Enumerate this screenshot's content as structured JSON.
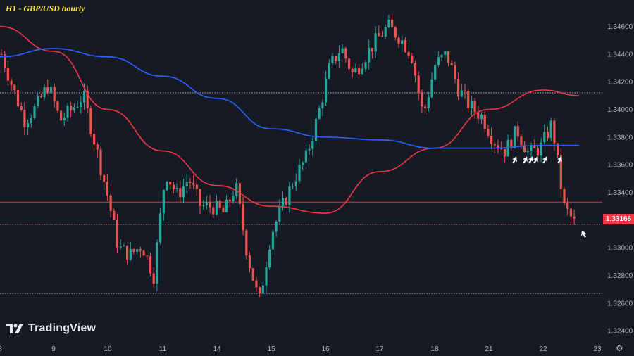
{
  "title": "H1 - GBP/USD hourly",
  "brand": "TradingView",
  "current_price_label": "1.33166",
  "settings_icon": "gear-icon",
  "colors": {
    "background": "#161a25",
    "up": "#26a69a",
    "down": "#ef5350",
    "ma_fast": "#f23645",
    "ma_slow": "#2962ff",
    "grid_line": "#d1d4dc",
    "axis_text": "#b2b5be",
    "price_tag": "#f23645",
    "title": "#ffeb3b"
  },
  "chart_data": {
    "type": "candlestick",
    "title": "H1 - GBP/USD hourly",
    "x_tick_labels": [
      "8",
      "9",
      "10",
      "11",
      "14",
      "15",
      "16",
      "17",
      "18",
      "21",
      "22",
      "23"
    ],
    "y_tick_labels": [
      "1.34600",
      "1.34400",
      "1.34200",
      "1.34000",
      "1.33800",
      "1.33600",
      "1.33400",
      "1.33200",
      "1.33000",
      "1.32800",
      "1.32600",
      "1.32400"
    ],
    "y_range": [
      1.3234,
      1.3474
    ],
    "horizontal_levels": [
      {
        "value": 1.3412,
        "style": "dotted",
        "color": "#d1d4dc"
      },
      {
        "value": 1.3333,
        "style": "solid",
        "color": "#f23645"
      },
      {
        "value": 1.33166,
        "style": "dotted",
        "color": "#f23645"
      },
      {
        "value": 1.3267,
        "style": "dotted",
        "color": "#d1d4dc"
      }
    ],
    "candles_close_path": [
      [
        "8",
        1.344
      ],
      [
        "8",
        1.3415
      ],
      [
        "8",
        1.3392
      ],
      [
        "8",
        1.3402
      ],
      [
        "9",
        1.3418
      ],
      [
        "9",
        1.3392
      ],
      [
        "9",
        1.34
      ],
      [
        "9",
        1.341
      ],
      [
        "10",
        1.3375
      ],
      [
        "10",
        1.334
      ],
      [
        "10",
        1.33
      ],
      [
        "10",
        1.3295
      ],
      [
        "10",
        1.3302
      ],
      [
        "10",
        1.328
      ],
      [
        "11",
        1.3355
      ],
      [
        "11",
        1.3338
      ],
      [
        "11",
        1.335
      ],
      [
        "11",
        1.333
      ],
      [
        "14",
        1.333
      ],
      [
        "14",
        1.3325
      ],
      [
        "14",
        1.3345
      ],
      [
        "14",
        1.3295
      ],
      [
        "15",
        1.326
      ],
      [
        "15",
        1.331
      ],
      [
        "15",
        1.333
      ],
      [
        "15",
        1.335
      ],
      [
        "15",
        1.3365
      ],
      [
        "16",
        1.3395
      ],
      [
        "16",
        1.343
      ],
      [
        "16",
        1.3445
      ],
      [
        "16",
        1.3425
      ],
      [
        "17",
        1.3438
      ],
      [
        "17",
        1.345
      ],
      [
        "17",
        1.346
      ],
      [
        "17",
        1.3452
      ],
      [
        "18",
        1.344
      ],
      [
        "18",
        1.3395
      ],
      [
        "18",
        1.3432
      ],
      [
        "18",
        1.344
      ],
      [
        "18",
        1.3415
      ],
      [
        "21",
        1.3402
      ],
      [
        "21",
        1.3395
      ],
      [
        "21",
        1.3378
      ],
      [
        "21",
        1.337
      ],
      [
        "22",
        1.3385
      ],
      [
        "22",
        1.3368
      ],
      [
        "22",
        1.3372
      ],
      [
        "22",
        1.339
      ],
      [
        "22",
        1.333
      ],
      [
        "22",
        1.33166
      ]
    ],
    "series": [
      {
        "name": "",
        "type": "line",
        "color": "#f23645",
        "points": [
          [
            "8",
            1.346
          ],
          [
            "9",
            1.3442
          ],
          [
            "10",
            1.34
          ],
          [
            "11",
            1.337
          ],
          [
            "14",
            1.3345
          ],
          [
            "15",
            1.333
          ],
          [
            "16",
            1.3325
          ],
          [
            "17",
            1.3355
          ],
          [
            "18",
            1.3372
          ],
          [
            "21",
            1.34
          ],
          [
            "22",
            1.3414
          ],
          [
            "22",
            1.341
          ]
        ]
      },
      {
        "name": "",
        "type": "line",
        "color": "#2962ff",
        "points": [
          [
            "8",
            1.3438
          ],
          [
            "9",
            1.3444
          ],
          [
            "10",
            1.3438
          ],
          [
            "11",
            1.3424
          ],
          [
            "14",
            1.3408
          ],
          [
            "15",
            1.3386
          ],
          [
            "16",
            1.338
          ],
          [
            "17",
            1.3378
          ],
          [
            "18",
            1.3372
          ],
          [
            "21",
            1.3372
          ],
          [
            "22",
            1.3374
          ],
          [
            "22",
            1.3374
          ]
        ]
      }
    ],
    "annotations": [
      {
        "type": "arrow",
        "count": 7,
        "near_value": 1.337,
        "color": "#ffffff"
      },
      {
        "type": "arrow",
        "count": 1,
        "near_value": 1.3314,
        "color": "#ffffff"
      }
    ],
    "grid": false,
    "legend": "none"
  }
}
